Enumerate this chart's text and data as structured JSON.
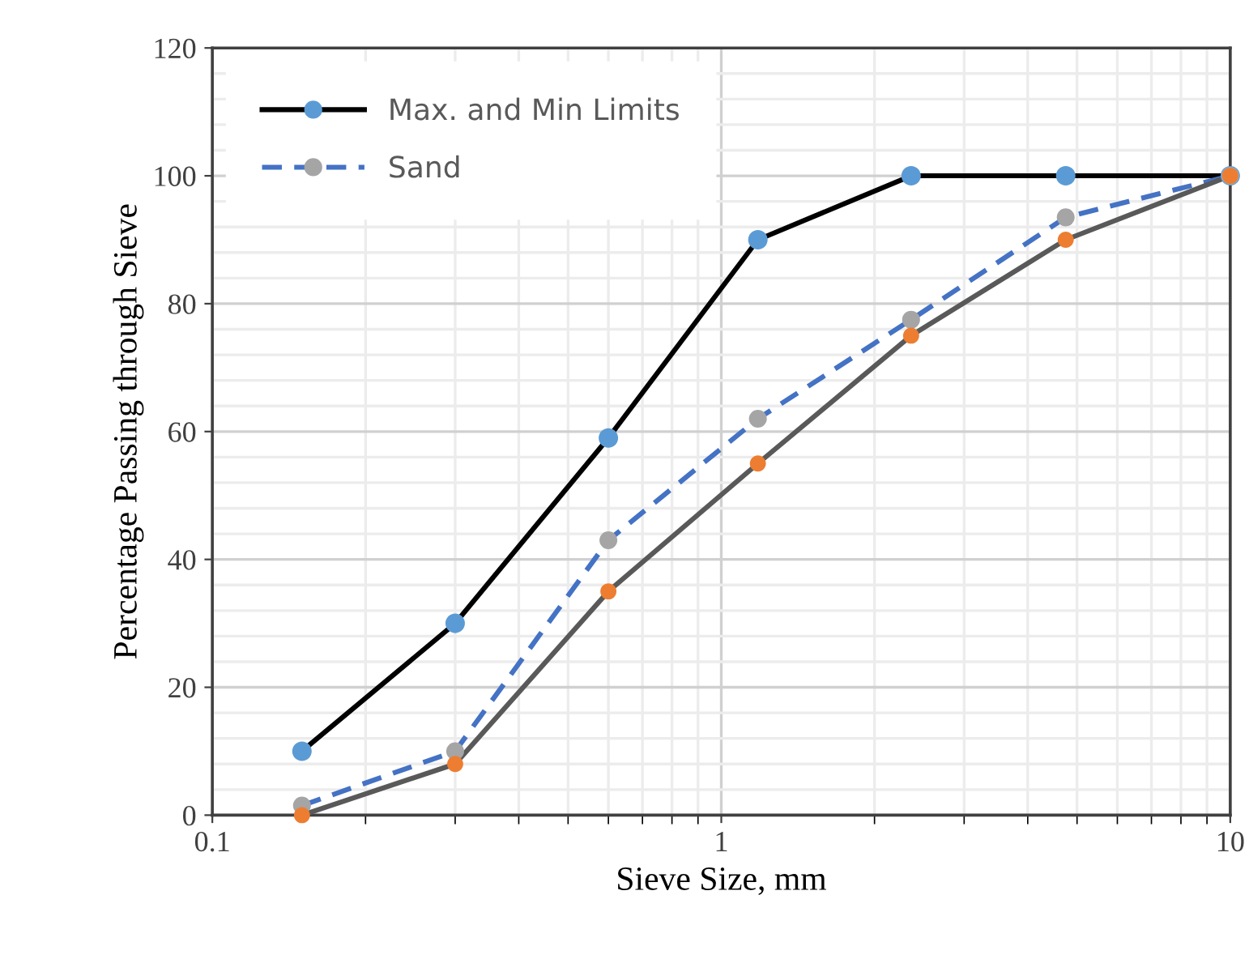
{
  "chart_data": {
    "type": "line",
    "xlabel": "Sieve Size, mm",
    "ylabel": "Percentage Passing through Sieve",
    "log": "x",
    "x": [
      0.15,
      0.3,
      0.6,
      1.18,
      2.36,
      4.75,
      10
    ],
    "series": [
      {
        "name": "Max. and Min Limits",
        "color": "#000000",
        "colors": [
          "#5b9bd5",
          "#5b9bd5",
          "#5b9bd5",
          "#5b9bd5",
          "#5b9bd5",
          "#5b9bd5",
          "#5b9bd5"
        ],
        "values": [
          10,
          30,
          59,
          90,
          100,
          100,
          100
        ]
      },
      {
        "name": "Sand",
        "color": "#4472c4",
        "line_style": "dashed",
        "colors": [
          "#a5a5a5",
          "#a5a5a5",
          "#a5a5a5",
          "#a5a5a5",
          "#a5a5a5",
          "#a5a5a5",
          "#a5a5a5"
        ],
        "values": [
          1.5,
          10,
          43,
          62,
          77.5,
          93.5,
          100
        ]
      },
      {
        "color": "#595959",
        "colors": [
          "#ed7d31",
          "#ed7d31",
          "#ed7d31",
          "#ed7d31",
          "#ed7d31",
          "#ed7d31",
          "#ed7d31"
        ],
        "values": [
          0,
          8,
          35,
          55,
          75,
          90,
          100
        ]
      }
    ],
    "xlim": [
      0.1,
      10
    ],
    "xticks": [
      0.1,
      1,
      10
    ],
    "ylim": [
      0,
      120
    ],
    "yticks": [
      0,
      20,
      40,
      60,
      80,
      100,
      120
    ],
    "grid": true,
    "legend": "top left",
    "marker": "circle",
    "line_style": "solid"
  }
}
